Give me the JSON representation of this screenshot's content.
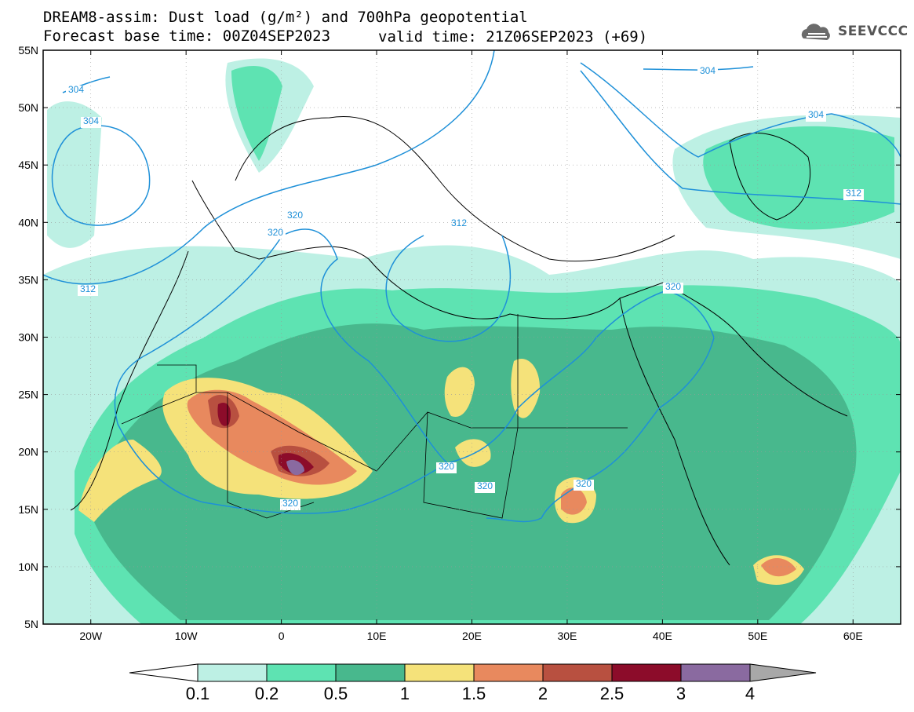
{
  "header": {
    "title_line1": "DREAM8-assim: Dust load (g/m²) and 700hPa geopotential",
    "title_line2": "Forecast base time: 00Z04SEP2023",
    "valid_time": "valid time: 21Z06SEP2023 (+69)",
    "logo_text": "SEEVCCC"
  },
  "map": {
    "lat_labels": [
      "55N",
      "50N",
      "45N",
      "40N",
      "35N",
      "30N",
      "25N",
      "20N",
      "15N",
      "10N",
      "5N"
    ],
    "lon_labels": [
      "20W",
      "10W",
      "0",
      "10E",
      "20E",
      "30E",
      "40E",
      "50E",
      "60E"
    ],
    "contour_labels": [
      "304",
      "304",
      "304",
      "304",
      "312",
      "312",
      "312",
      "320",
      "320",
      "320",
      "320",
      "320",
      "320",
      "320"
    ]
  },
  "colorbar": {
    "labels": [
      "0.1",
      "0.2",
      "0.5",
      "1",
      "1.5",
      "2",
      "2.5",
      "3",
      "4"
    ],
    "colors": [
      "#bdf0e4",
      "#5ee3b2",
      "#48b88d",
      "#f5e27a",
      "#e8895e",
      "#b85040",
      "#8c0c2a",
      "#8a6aa0"
    ],
    "under_color": "#ffffff",
    "over_color": "#a8a8a8"
  },
  "chart_data": {
    "type": "heatmap",
    "title": "DREAM8-assim: Dust load (g/m²) and 700hPa geopotential",
    "variable": "Dust load (g/m²)",
    "overlay": "700hPa geopotential contours (dam)",
    "contour_levels": [
      304,
      312,
      320
    ],
    "lon_range": [
      -25,
      65
    ],
    "lat_range": [
      5,
      55
    ],
    "levels": [
      0.1,
      0.2,
      0.5,
      1,
      1.5,
      2,
      2.5,
      3,
      4
    ]
  }
}
